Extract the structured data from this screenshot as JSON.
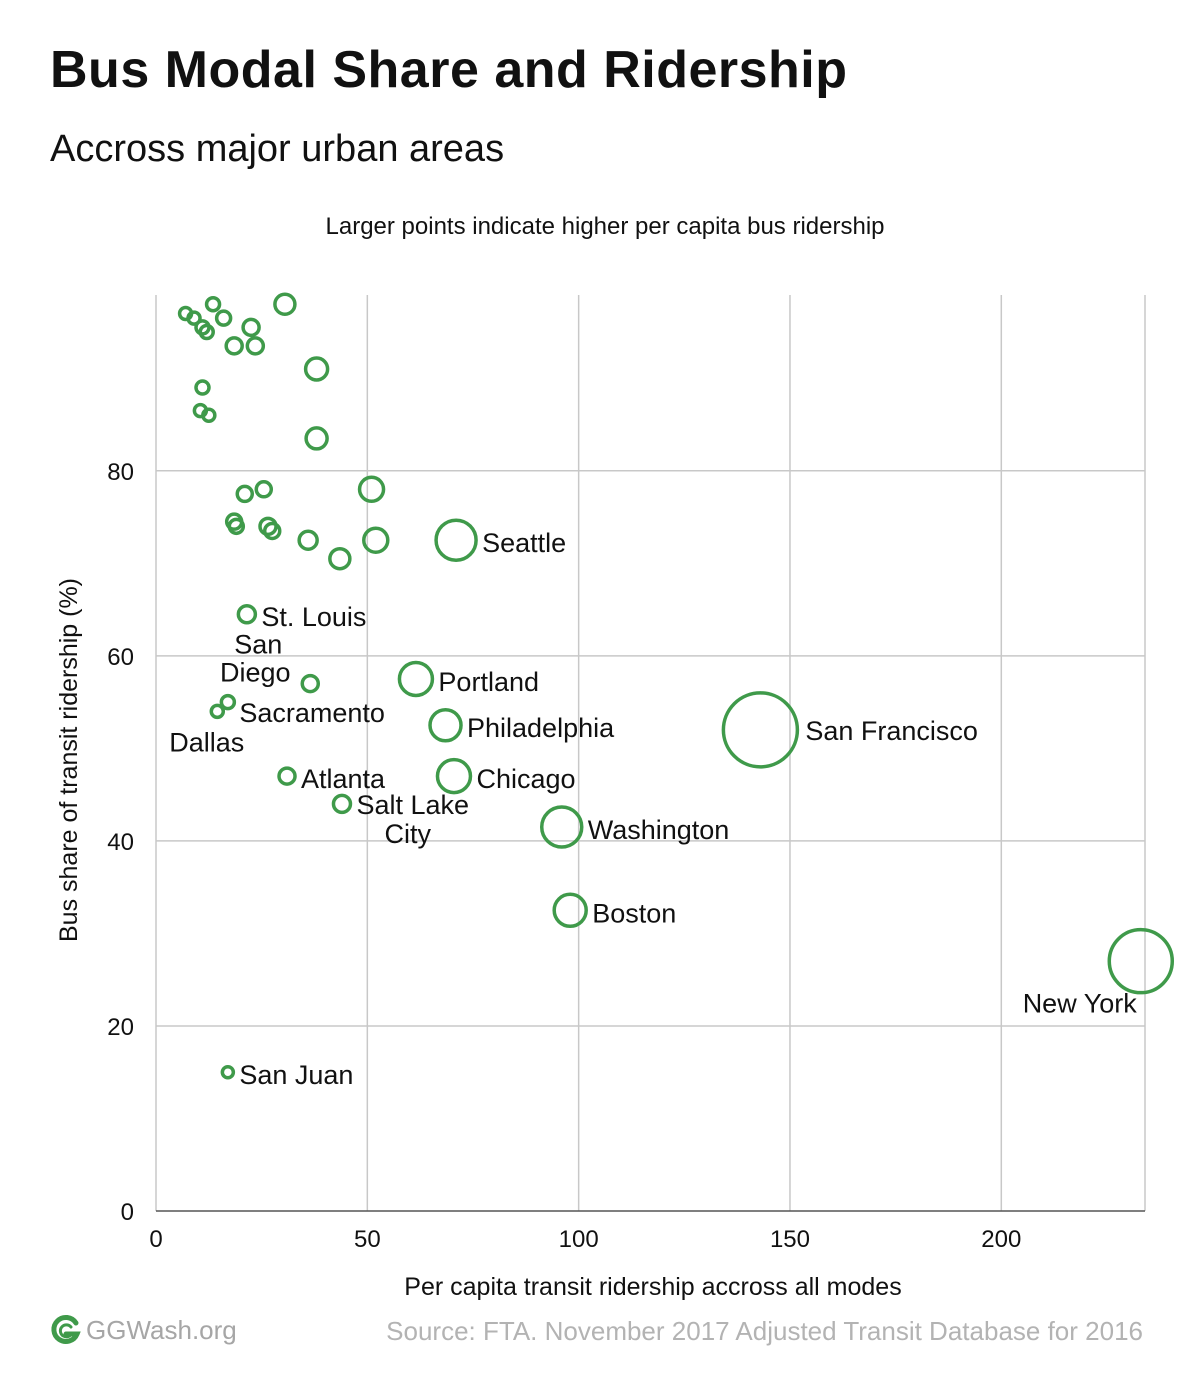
{
  "title": "Bus Modal Share and Ridership",
  "subtitle": "Accross major urban areas",
  "footer": {
    "logo_text": "GGWash.org",
    "source": "Source: FTA. November 2017 Adjusted Transit Database for 2016"
  },
  "colors": {
    "point_stroke": "#3f9a4a",
    "grid": "#c8c8c8",
    "text": "#111111",
    "muted": "#a6a6a6",
    "logo_green": "#3f9a4a"
  },
  "chart_data": {
    "type": "scatter",
    "note": "Larger points indicate higher per capita bus ridership",
    "xlabel": "Per capita transit ridership accross all modes",
    "ylabel": "Bus share of transit ridership (%)",
    "xlim": [
      0,
      234
    ],
    "ylim": [
      0,
      99
    ],
    "xticks": [
      0,
      50,
      100,
      150,
      200
    ],
    "yticks": [
      0,
      20,
      40,
      60,
      80
    ],
    "grid": true,
    "size_encoding": "per capita bus ridership",
    "points": [
      {
        "x": 143,
        "y": 52,
        "size": 74,
        "label": "San Francisco"
      },
      {
        "x": 233,
        "y": 27,
        "size": 63,
        "label": "New York"
      },
      {
        "x": 71,
        "y": 72.5,
        "size": 40,
        "label": "Seattle"
      },
      {
        "x": 21.5,
        "y": 64.5,
        "size": 17,
        "label": "St. Louis"
      },
      {
        "x": 61.5,
        "y": 57.5,
        "size": 33,
        "label": "Portland"
      },
      {
        "x": 68.5,
        "y": 52.5,
        "size": 31,
        "label": "Philadelphia"
      },
      {
        "x": 70.5,
        "y": 47,
        "size": 33,
        "label": "Chicago"
      },
      {
        "x": 96,
        "y": 41.5,
        "size": 40,
        "label": "Washington"
      },
      {
        "x": 98,
        "y": 32.5,
        "size": 32,
        "label": "Boston"
      },
      {
        "x": 31,
        "y": 47,
        "size": 16,
        "label": "Atlanta"
      },
      {
        "x": 44,
        "y": 44,
        "size": 17,
        "label": "Salt Lake City"
      },
      {
        "x": 36.5,
        "y": 57,
        "size": 16,
        "label": "San Diego"
      },
      {
        "x": 17,
        "y": 55,
        "size": 13,
        "label": "Sacramento"
      },
      {
        "x": 14.5,
        "y": 54,
        "size": 12,
        "label": "Dallas"
      },
      {
        "x": 17,
        "y": 15,
        "size": 11,
        "label": "San Juan"
      },
      {
        "x": 30.5,
        "y": 98,
        "size": 20,
        "label": ""
      },
      {
        "x": 7,
        "y": 97,
        "size": 12,
        "label": ""
      },
      {
        "x": 9,
        "y": 96.5,
        "size": 12,
        "label": ""
      },
      {
        "x": 13.5,
        "y": 98,
        "size": 13,
        "label": ""
      },
      {
        "x": 11,
        "y": 95.5,
        "size": 13,
        "label": ""
      },
      {
        "x": 12,
        "y": 95,
        "size": 13,
        "label": ""
      },
      {
        "x": 16,
        "y": 96.5,
        "size": 14,
        "label": ""
      },
      {
        "x": 22.5,
        "y": 95.5,
        "size": 16,
        "label": ""
      },
      {
        "x": 18.5,
        "y": 93.5,
        "size": 16,
        "label": ""
      },
      {
        "x": 23.5,
        "y": 93.5,
        "size": 16,
        "label": ""
      },
      {
        "x": 38,
        "y": 91,
        "size": 22,
        "label": ""
      },
      {
        "x": 11,
        "y": 89,
        "size": 13,
        "label": ""
      },
      {
        "x": 10.5,
        "y": 86.5,
        "size": 12,
        "label": ""
      },
      {
        "x": 12.5,
        "y": 86,
        "size": 12,
        "label": ""
      },
      {
        "x": 38,
        "y": 83.5,
        "size": 21,
        "label": ""
      },
      {
        "x": 51,
        "y": 78,
        "size": 24,
        "label": ""
      },
      {
        "x": 25.5,
        "y": 78,
        "size": 15,
        "label": ""
      },
      {
        "x": 21,
        "y": 77.5,
        "size": 15,
        "label": ""
      },
      {
        "x": 18.5,
        "y": 74.5,
        "size": 15,
        "label": ""
      },
      {
        "x": 19,
        "y": 74,
        "size": 14,
        "label": ""
      },
      {
        "x": 26.5,
        "y": 74,
        "size": 16,
        "label": ""
      },
      {
        "x": 27.5,
        "y": 73.5,
        "size": 15,
        "label": ""
      },
      {
        "x": 36,
        "y": 72.5,
        "size": 18,
        "label": ""
      },
      {
        "x": 52,
        "y": 72.5,
        "size": 24,
        "label": ""
      },
      {
        "x": 43.5,
        "y": 70.5,
        "size": 20,
        "label": ""
      }
    ]
  }
}
